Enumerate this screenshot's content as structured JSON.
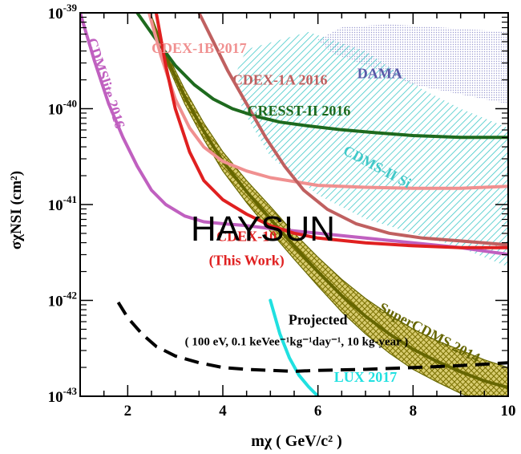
{
  "chart_data": {
    "type": "line",
    "xlabel": "mχ ( GeV/c² )",
    "ylabel": "σχNSI (cm²)",
    "xlim": [
      1,
      10
    ],
    "ylim_log10": [
      -43,
      -39
    ],
    "y_scale": "log",
    "x_ticks": [
      2,
      4,
      6,
      8,
      10
    ],
    "y_ticks": [
      {
        "exp": -43,
        "base": "10",
        "power": "-43"
      },
      {
        "exp": -42,
        "base": "10",
        "power": "-42"
      },
      {
        "exp": -41,
        "base": "10",
        "power": "-41"
      },
      {
        "exp": -40,
        "base": "10",
        "power": "-40"
      },
      {
        "exp": -39,
        "base": "10",
        "power": "-39"
      }
    ],
    "regions": [
      {
        "name": "DAMA",
        "color": "#5a5aa8",
        "polygon_log10": [
          [
            6.0,
            -39.28
          ],
          [
            6.5,
            -39.15
          ],
          [
            7.5,
            -39.12
          ],
          [
            8.5,
            -39.15
          ],
          [
            10,
            -39.2
          ],
          [
            10,
            -39.95
          ],
          [
            9.0,
            -39.85
          ],
          [
            8.0,
            -39.75
          ],
          [
            7.0,
            -39.55
          ],
          [
            6.3,
            -39.42
          ]
        ]
      },
      {
        "name": "CDMS-II Si",
        "color": "#40c8c8",
        "polygon_log10": [
          [
            4.5,
            -39.38
          ],
          [
            5.8,
            -39.2
          ],
          [
            7.0,
            -39.4
          ],
          [
            8.2,
            -39.8
          ],
          [
            9.0,
            -40.0
          ],
          [
            10,
            -40.2
          ],
          [
            10,
            -41.65
          ],
          [
            9.0,
            -41.45
          ],
          [
            8.0,
            -41.3
          ],
          [
            7.0,
            -41.15
          ],
          [
            6.0,
            -40.9
          ],
          [
            5.0,
            -40.5
          ],
          [
            4.4,
            -40.0
          ],
          [
            4.3,
            -39.6
          ]
        ]
      }
    ],
    "bands": [
      {
        "name": "SuperCDMS 2014",
        "color": "#666600",
        "fill": "#9c9000",
        "x": [
          2.45,
          2.8,
          3.2,
          3.6,
          4.0,
          4.5,
          5.0,
          5.5,
          6.0,
          6.5,
          7.0,
          7.5,
          8.0,
          8.5,
          9.0,
          9.5,
          10
        ],
        "upper_log10": [
          -39.0,
          -39.4,
          -39.8,
          -40.15,
          -40.45,
          -40.75,
          -41.02,
          -41.3,
          -41.55,
          -41.78,
          -41.98,
          -42.15,
          -42.3,
          -42.42,
          -42.52,
          -42.62,
          -42.7
        ],
        "lower_log10": [
          -39.0,
          -39.5,
          -39.95,
          -40.32,
          -40.65,
          -40.98,
          -41.28,
          -41.57,
          -41.85,
          -42.12,
          -42.35,
          -42.55,
          -42.72,
          -42.85,
          -42.97,
          -43.06,
          -43.12
        ]
      }
    ],
    "series": [
      {
        "name": "CDMSlite 2016",
        "color": "#c060c0",
        "x": [
          1.0,
          1.3,
          1.6,
          1.9,
          2.2,
          2.5,
          2.8,
          3.2,
          3.6,
          4.0,
          4.5,
          5.0,
          6.0,
          7.0,
          8.0,
          9.0,
          10.0
        ],
        "y_log10": [
          -39.0,
          -39.5,
          -39.95,
          -40.3,
          -40.6,
          -40.85,
          -41.0,
          -41.12,
          -41.18,
          -41.2,
          -41.22,
          -41.25,
          -41.3,
          -41.35,
          -41.4,
          -41.45,
          -41.52
        ]
      },
      {
        "name": "CRESST-II 2016",
        "color": "#1e6a1e",
        "x": [
          2.2,
          2.6,
          3.0,
          3.4,
          3.8,
          4.2,
          4.7,
          5.2,
          5.8,
          6.5,
          7.2,
          8.0,
          9.0,
          10.0
        ],
        "y_log10": [
          -39.0,
          -39.28,
          -39.55,
          -39.75,
          -39.9,
          -40.0,
          -40.08,
          -40.14,
          -40.18,
          -40.22,
          -40.25,
          -40.28,
          -40.3,
          -40.3
        ]
      },
      {
        "name": "CDEX-1B 2017",
        "color": "#f09090",
        "x": [
          2.45,
          2.7,
          3.0,
          3.3,
          3.6,
          4.0,
          4.5,
          5.0,
          5.5,
          6.0,
          7.0,
          8.0,
          9.0,
          10.0
        ],
        "y_log10": [
          -39.0,
          -39.45,
          -39.9,
          -40.2,
          -40.4,
          -40.55,
          -40.65,
          -40.72,
          -40.76,
          -40.8,
          -40.82,
          -40.83,
          -40.83,
          -40.81
        ]
      },
      {
        "name": "CDEX-1A 2016",
        "color": "#c06060",
        "x": [
          3.5,
          3.8,
          4.1,
          4.5,
          4.9,
          5.3,
          5.7,
          6.2,
          6.8,
          7.5,
          8.2,
          9.0,
          10.0
        ],
        "y_log10": [
          -39.0,
          -39.3,
          -39.6,
          -39.95,
          -40.3,
          -40.6,
          -40.85,
          -41.05,
          -41.2,
          -41.3,
          -41.35,
          -41.38,
          -41.42
        ]
      },
      {
        "name": "CDEX-10",
        "color": "#e02020",
        "x": [
          2.6,
          2.8,
          3.0,
          3.3,
          3.6,
          4.0,
          4.5,
          5.0,
          5.5,
          6.0,
          7.0,
          8.0,
          9.0,
          10.0
        ],
        "y_log10": [
          -39.0,
          -39.55,
          -40.0,
          -40.45,
          -40.75,
          -40.95,
          -41.1,
          -41.22,
          -41.3,
          -41.35,
          -41.4,
          -41.43,
          -41.45,
          -41.45
        ]
      },
      {
        "name": "LUX 2017",
        "color": "#20e0e0",
        "x": [
          5.0,
          5.2,
          5.4,
          5.6,
          5.8,
          6.0
        ],
        "y_log10": [
          -42.0,
          -42.35,
          -42.6,
          -42.78,
          -42.9,
          -43.0
        ]
      },
      {
        "name": "Projected",
        "color": "#000000",
        "dashed": true,
        "x": [
          1.8,
          2.0,
          2.3,
          2.6,
          3.0,
          3.5,
          4.0,
          4.5,
          5.0,
          5.5,
          6.0,
          7.0,
          8.0,
          9.0,
          10.0
        ],
        "y_log10": [
          -42.02,
          -42.18,
          -42.35,
          -42.48,
          -42.58,
          -42.65,
          -42.7,
          -42.72,
          -42.73,
          -42.74,
          -42.73,
          -42.72,
          -42.7,
          -42.68,
          -42.65
        ]
      }
    ],
    "annotations": [
      {
        "text": "DAMA",
        "color": "#5a5aa8",
        "x": 7.3,
        "y_log10": -39.68,
        "rotate": 0
      },
      {
        "text": "CDEX-1B 2017",
        "color": "#f09090",
        "x": 3.5,
        "y_log10": -39.42,
        "rotate": 0
      },
      {
        "text": "CDEX-1A 2016",
        "color": "#c06060",
        "x": 5.2,
        "y_log10": -39.75,
        "rotate": 0
      },
      {
        "text": "CRESST-II 2016",
        "color": "#1e6a1e",
        "x": 5.6,
        "y_log10": -40.07,
        "rotate": 0
      },
      {
        "text": "CDMSlite 2016",
        "color": "#c060c0",
        "x": 1.45,
        "y_log10": -39.75,
        "rotate": 72
      },
      {
        "text": "CDMS-II Si",
        "color": "#40c8c8",
        "x": 7.2,
        "y_log10": -40.65,
        "rotate": 28
      },
      {
        "text": "CDEX-10",
        "color": "#e02020",
        "x": 4.5,
        "y_log10": -41.38,
        "rotate": 0
      },
      {
        "text": "(This Work)",
        "color": "#e02020",
        "x": 4.5,
        "y_log10": -41.63,
        "rotate": 0
      },
      {
        "text": "SuperCDMS 2014",
        "color": "#666600",
        "x": 8.3,
        "y_log10": -42.38,
        "rotate": 28
      },
      {
        "text": "Projected",
        "color": "#000000",
        "x": 6.0,
        "y_log10": -42.25,
        "rotate": 0
      },
      {
        "text": "( 100 eV, 0.1 keVee⁻¹kg⁻¹day⁻¹, 10 kg-year )",
        "color": "#000000",
        "x": 5.55,
        "y_log10": -42.47,
        "rotate": 0
      },
      {
        "text": "LUX 2017",
        "color": "#20e0e0",
        "x": 7.0,
        "y_log10": -42.85,
        "rotate": 0
      }
    ],
    "watermark": "HAYSUN"
  }
}
